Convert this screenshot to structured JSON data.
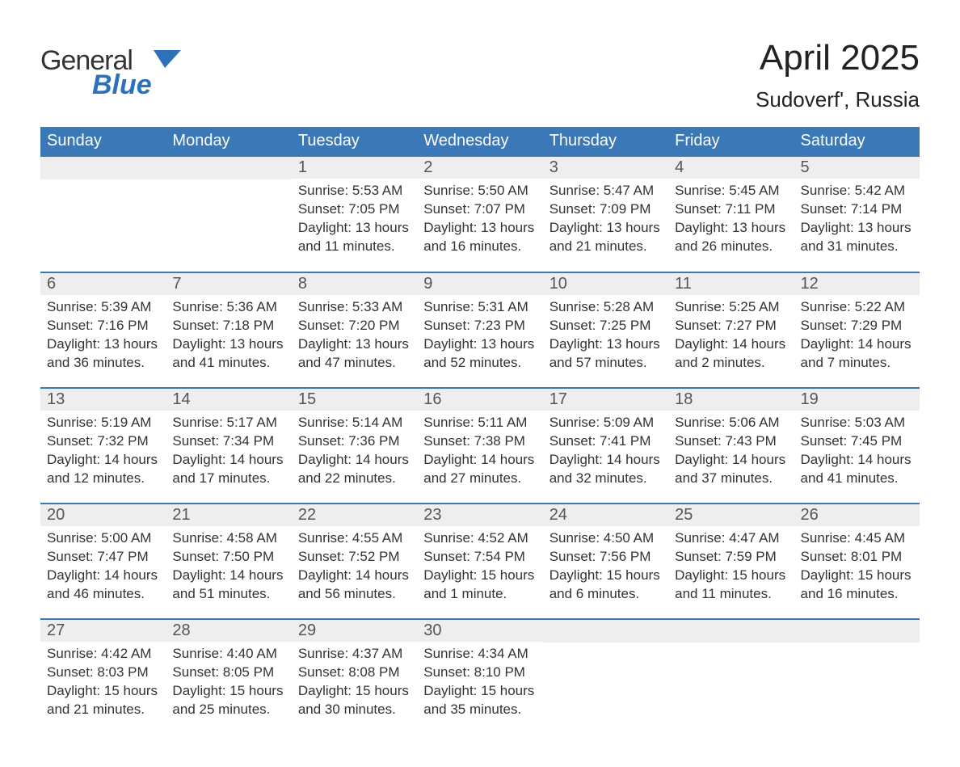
{
  "brand": {
    "word1": "General",
    "word2": "Blue"
  },
  "title": "April 2025",
  "location": "Sudoverf', Russia",
  "colors": {
    "header_blue": "#3b78b8",
    "row_grey": "#eeeeee",
    "row_border": "#3b78b8",
    "text": "#333333",
    "logo_blue": "#2d72b8",
    "background": "#ffffff"
  },
  "typography": {
    "font_family": "Arial, Helvetica, sans-serif",
    "title_fontsize": 44,
    "location_fontsize": 26,
    "header_fontsize": 20,
    "daynum_fontsize": 20,
    "body_fontsize": 17
  },
  "calendar": {
    "type": "calendar-table",
    "headers": [
      "Sunday",
      "Monday",
      "Tuesday",
      "Wednesday",
      "Thursday",
      "Friday",
      "Saturday"
    ],
    "weeks": [
      [
        {
          "blank": true
        },
        {
          "blank": true
        },
        {
          "num": "1",
          "sunrise": "Sunrise: 5:53 AM",
          "sunset": "Sunset: 7:05 PM",
          "daylight1": "Daylight: 13 hours",
          "daylight2": "and 11 minutes."
        },
        {
          "num": "2",
          "sunrise": "Sunrise: 5:50 AM",
          "sunset": "Sunset: 7:07 PM",
          "daylight1": "Daylight: 13 hours",
          "daylight2": "and 16 minutes."
        },
        {
          "num": "3",
          "sunrise": "Sunrise: 5:47 AM",
          "sunset": "Sunset: 7:09 PM",
          "daylight1": "Daylight: 13 hours",
          "daylight2": "and 21 minutes."
        },
        {
          "num": "4",
          "sunrise": "Sunrise: 5:45 AM",
          "sunset": "Sunset: 7:11 PM",
          "daylight1": "Daylight: 13 hours",
          "daylight2": "and 26 minutes."
        },
        {
          "num": "5",
          "sunrise": "Sunrise: 5:42 AM",
          "sunset": "Sunset: 7:14 PM",
          "daylight1": "Daylight: 13 hours",
          "daylight2": "and 31 minutes."
        }
      ],
      [
        {
          "num": "6",
          "sunrise": "Sunrise: 5:39 AM",
          "sunset": "Sunset: 7:16 PM",
          "daylight1": "Daylight: 13 hours",
          "daylight2": "and 36 minutes."
        },
        {
          "num": "7",
          "sunrise": "Sunrise: 5:36 AM",
          "sunset": "Sunset: 7:18 PM",
          "daylight1": "Daylight: 13 hours",
          "daylight2": "and 41 minutes."
        },
        {
          "num": "8",
          "sunrise": "Sunrise: 5:33 AM",
          "sunset": "Sunset: 7:20 PM",
          "daylight1": "Daylight: 13 hours",
          "daylight2": "and 47 minutes."
        },
        {
          "num": "9",
          "sunrise": "Sunrise: 5:31 AM",
          "sunset": "Sunset: 7:23 PM",
          "daylight1": "Daylight: 13 hours",
          "daylight2": "and 52 minutes."
        },
        {
          "num": "10",
          "sunrise": "Sunrise: 5:28 AM",
          "sunset": "Sunset: 7:25 PM",
          "daylight1": "Daylight: 13 hours",
          "daylight2": "and 57 minutes."
        },
        {
          "num": "11",
          "sunrise": "Sunrise: 5:25 AM",
          "sunset": "Sunset: 7:27 PM",
          "daylight1": "Daylight: 14 hours",
          "daylight2": "and 2 minutes."
        },
        {
          "num": "12",
          "sunrise": "Sunrise: 5:22 AM",
          "sunset": "Sunset: 7:29 PM",
          "daylight1": "Daylight: 14 hours",
          "daylight2": "and 7 minutes."
        }
      ],
      [
        {
          "num": "13",
          "sunrise": "Sunrise: 5:19 AM",
          "sunset": "Sunset: 7:32 PM",
          "daylight1": "Daylight: 14 hours",
          "daylight2": "and 12 minutes."
        },
        {
          "num": "14",
          "sunrise": "Sunrise: 5:17 AM",
          "sunset": "Sunset: 7:34 PM",
          "daylight1": "Daylight: 14 hours",
          "daylight2": "and 17 minutes."
        },
        {
          "num": "15",
          "sunrise": "Sunrise: 5:14 AM",
          "sunset": "Sunset: 7:36 PM",
          "daylight1": "Daylight: 14 hours",
          "daylight2": "and 22 minutes."
        },
        {
          "num": "16",
          "sunrise": "Sunrise: 5:11 AM",
          "sunset": "Sunset: 7:38 PM",
          "daylight1": "Daylight: 14 hours",
          "daylight2": "and 27 minutes."
        },
        {
          "num": "17",
          "sunrise": "Sunrise: 5:09 AM",
          "sunset": "Sunset: 7:41 PM",
          "daylight1": "Daylight: 14 hours",
          "daylight2": "and 32 minutes."
        },
        {
          "num": "18",
          "sunrise": "Sunrise: 5:06 AM",
          "sunset": "Sunset: 7:43 PM",
          "daylight1": "Daylight: 14 hours",
          "daylight2": "and 37 minutes."
        },
        {
          "num": "19",
          "sunrise": "Sunrise: 5:03 AM",
          "sunset": "Sunset: 7:45 PM",
          "daylight1": "Daylight: 14 hours",
          "daylight2": "and 41 minutes."
        }
      ],
      [
        {
          "num": "20",
          "sunrise": "Sunrise: 5:00 AM",
          "sunset": "Sunset: 7:47 PM",
          "daylight1": "Daylight: 14 hours",
          "daylight2": "and 46 minutes."
        },
        {
          "num": "21",
          "sunrise": "Sunrise: 4:58 AM",
          "sunset": "Sunset: 7:50 PM",
          "daylight1": "Daylight: 14 hours",
          "daylight2": "and 51 minutes."
        },
        {
          "num": "22",
          "sunrise": "Sunrise: 4:55 AM",
          "sunset": "Sunset: 7:52 PM",
          "daylight1": "Daylight: 14 hours",
          "daylight2": "and 56 minutes."
        },
        {
          "num": "23",
          "sunrise": "Sunrise: 4:52 AM",
          "sunset": "Sunset: 7:54 PM",
          "daylight1": "Daylight: 15 hours",
          "daylight2": "and 1 minute."
        },
        {
          "num": "24",
          "sunrise": "Sunrise: 4:50 AM",
          "sunset": "Sunset: 7:56 PM",
          "daylight1": "Daylight: 15 hours",
          "daylight2": "and 6 minutes."
        },
        {
          "num": "25",
          "sunrise": "Sunrise: 4:47 AM",
          "sunset": "Sunset: 7:59 PM",
          "daylight1": "Daylight: 15 hours",
          "daylight2": "and 11 minutes."
        },
        {
          "num": "26",
          "sunrise": "Sunrise: 4:45 AM",
          "sunset": "Sunset: 8:01 PM",
          "daylight1": "Daylight: 15 hours",
          "daylight2": "and 16 minutes."
        }
      ],
      [
        {
          "num": "27",
          "sunrise": "Sunrise: 4:42 AM",
          "sunset": "Sunset: 8:03 PM",
          "daylight1": "Daylight: 15 hours",
          "daylight2": "and 21 minutes."
        },
        {
          "num": "28",
          "sunrise": "Sunrise: 4:40 AM",
          "sunset": "Sunset: 8:05 PM",
          "daylight1": "Daylight: 15 hours",
          "daylight2": "and 25 minutes."
        },
        {
          "num": "29",
          "sunrise": "Sunrise: 4:37 AM",
          "sunset": "Sunset: 8:08 PM",
          "daylight1": "Daylight: 15 hours",
          "daylight2": "and 30 minutes."
        },
        {
          "num": "30",
          "sunrise": "Sunrise: 4:34 AM",
          "sunset": "Sunset: 8:10 PM",
          "daylight1": "Daylight: 15 hours",
          "daylight2": "and 35 minutes."
        },
        {
          "blank": true
        },
        {
          "blank": true
        },
        {
          "blank": true
        }
      ]
    ]
  }
}
